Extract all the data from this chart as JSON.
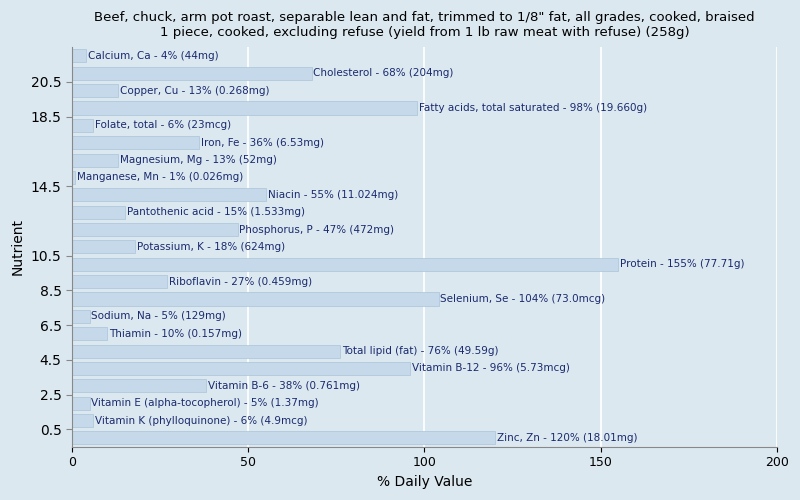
{
  "title": "Beef, chuck, arm pot roast, separable lean and fat, trimmed to 1/8\" fat, all grades, cooked, braised\n1 piece, cooked, excluding refuse (yield from 1 lb raw meat with refuse) (258g)",
  "xlabel": "% Daily Value",
  "ylabel": "Nutrient",
  "xlim": [
    0,
    200
  ],
  "xticks": [
    0,
    50,
    100,
    150,
    200
  ],
  "background_color": "#dce8f0",
  "plot_bg_color": "#dce8f0",
  "bar_color": "#c5d9ea",
  "bar_edge_color": "#a8c4d8",
  "text_color": "#1a2a6e",
  "nutrients": [
    {
      "label": "Calcium, Ca - 4% (44mg)",
      "value": 4
    },
    {
      "label": "Cholesterol - 68% (204mg)",
      "value": 68
    },
    {
      "label": "Copper, Cu - 13% (0.268mg)",
      "value": 13
    },
    {
      "label": "Fatty acids, total saturated - 98% (19.660g)",
      "value": 98
    },
    {
      "label": "Folate, total - 6% (23mcg)",
      "value": 6
    },
    {
      "label": "Iron, Fe - 36% (6.53mg)",
      "value": 36
    },
    {
      "label": "Magnesium, Mg - 13% (52mg)",
      "value": 13
    },
    {
      "label": "Manganese, Mn - 1% (0.026mg)",
      "value": 1
    },
    {
      "label": "Niacin - 55% (11.024mg)",
      "value": 55
    },
    {
      "label": "Pantothenic acid - 15% (1.533mg)",
      "value": 15
    },
    {
      "label": "Phosphorus, P - 47% (472mg)",
      "value": 47
    },
    {
      "label": "Potassium, K - 18% (624mg)",
      "value": 18
    },
    {
      "label": "Protein - 155% (77.71g)",
      "value": 155
    },
    {
      "label": "Riboflavin - 27% (0.459mg)",
      "value": 27
    },
    {
      "label": "Selenium, Se - 104% (73.0mcg)",
      "value": 104
    },
    {
      "label": "Sodium, Na - 5% (129mg)",
      "value": 5
    },
    {
      "label": "Thiamin - 10% (0.157mg)",
      "value": 10
    },
    {
      "label": "Total lipid (fat) - 76% (49.59g)",
      "value": 76
    },
    {
      "label": "Vitamin B-12 - 96% (5.73mcg)",
      "value": 96
    },
    {
      "label": "Vitamin B-6 - 38% (0.761mg)",
      "value": 38
    },
    {
      "label": "Vitamin E (alpha-tocopherol) - 5% (1.37mg)",
      "value": 5
    },
    {
      "label": "Vitamin K (phylloquinone) - 6% (4.9mcg)",
      "value": 6
    },
    {
      "label": "Zinc, Zn - 120% (18.01mg)",
      "value": 120
    }
  ],
  "title_fontsize": 9.5,
  "label_fontsize": 7.5,
  "tick_fontsize": 9,
  "axis_label_fontsize": 10,
  "bar_height": 0.75
}
